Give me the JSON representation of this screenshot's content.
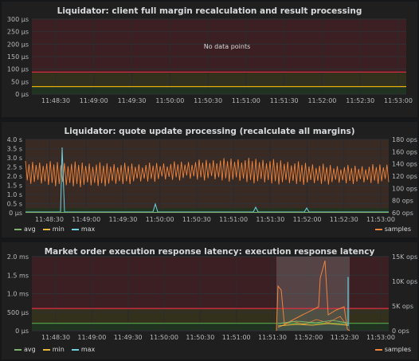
{
  "panels": [
    {
      "title": "Liquidator: client full margin recalculation and result processing",
      "no_data_text": "No data points",
      "y_ticks": [
        "300 µs",
        "250 µs",
        "200 µs",
        "150 µs",
        "100 µs",
        "50 µs",
        "0 µs"
      ],
      "x_ticks": [
        "11:48:30",
        "11:49:00",
        "11:49:30",
        "11:50:00",
        "11:50:30",
        "11:51:00",
        "11:51:30",
        "11:52:00",
        "11:52:30",
        "11:53:00"
      ],
      "thresholds": {
        "red": 88,
        "yellow": 30
      }
    },
    {
      "title": "Liquidator: quote update processing (recalculate all margins)",
      "y_ticks": [
        "4.0 s",
        "3.5 s",
        "3.0 s",
        "2.5 s",
        "2.0 s",
        "1.5 s",
        "1.0 s",
        "0.5 s",
        "0 µs"
      ],
      "y2_ticks": [
        "180 ops",
        "160 ops",
        "140 ops",
        "120 ops",
        "100 ops",
        "80 ops",
        "60 ops"
      ],
      "x_ticks": [
        "11:48:30",
        "11:49:00",
        "11:49:30",
        "11:50:00",
        "11:50:30",
        "11:51:00",
        "11:51:30",
        "11:52:00",
        "11:52:30",
        "11:53:00"
      ],
      "legend": [
        {
          "label": "avg",
          "color": "#7eb26d"
        },
        {
          "label": "min",
          "color": "#eab839"
        },
        {
          "label": "max",
          "color": "#6ed0e0"
        }
      ],
      "legend_right": {
        "label": "samples",
        "color": "#ef843c"
      }
    },
    {
      "title": "Market order execution response latency: execution response latency",
      "y_ticks": [
        "2.0 ms",
        "1.5 ms",
        "1.0 ms",
        "500 µs",
        "0 µs"
      ],
      "y2_ticks": [
        "15K ops",
        "10K ops",
        "5K ops",
        "0 ops"
      ],
      "x_ticks": [
        "11:48:30",
        "11:49:00",
        "11:49:30",
        "11:50:00",
        "11:50:30",
        "11:51:00",
        "11:51:30",
        "11:52:00",
        "11:52:30",
        "11:53:00"
      ],
      "legend": [
        {
          "label": "avg",
          "color": "#7eb26d"
        },
        {
          "label": "min",
          "color": "#eab839"
        },
        {
          "label": "max",
          "color": "#6ed0e0"
        }
      ],
      "legend_right": {
        "label": "samples",
        "color": "#ef843c"
      }
    }
  ],
  "colors": {
    "threshold_red": "#e02f44",
    "threshold_yellow": "#e5ac0e",
    "threshold_green": "#56a64b",
    "samples": "#ef843c",
    "max": "#6ed0e0",
    "min": "#eab839",
    "avg": "#7eb26d"
  }
}
